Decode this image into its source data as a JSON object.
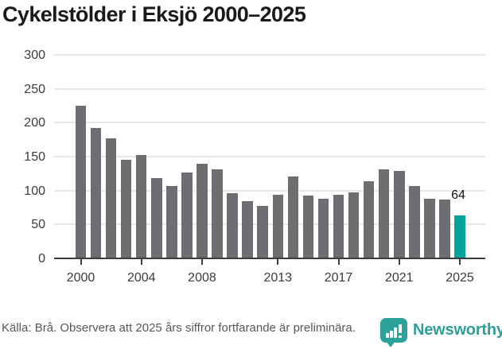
{
  "title": "Cykelstölder i Eksjö 2000–2025",
  "chart_data": {
    "type": "bar",
    "title": "Cykelstölder i Eksjö 2000–2025",
    "xlabel": "",
    "ylabel": "",
    "categories": [
      2000,
      2001,
      2002,
      2003,
      2004,
      2005,
      2006,
      2007,
      2008,
      2009,
      2010,
      2011,
      2012,
      2013,
      2014,
      2015,
      2016,
      2017,
      2018,
      2019,
      2020,
      2021,
      2022,
      2023,
      2024,
      2025
    ],
    "values": [
      226,
      193,
      178,
      147,
      154,
      119,
      108,
      128,
      141,
      133,
      97,
      86,
      79,
      95,
      122,
      94,
      89,
      95,
      98,
      115,
      133,
      130,
      108,
      89,
      88,
      64
    ],
    "highlight_index": 25,
    "highlight_label": "64",
    "bar_color": "#6e6d72",
    "highlight_color": "#00a49b",
    "ylim": [
      0,
      300
    ],
    "yticks": [
      0,
      50,
      100,
      150,
      200,
      250,
      300
    ],
    "xticks": [
      2000,
      2004,
      2008,
      2013,
      2017,
      2021,
      2025
    ],
    "grid": "horizontal",
    "legend": "none"
  },
  "footer": {
    "source_text": "Källa: Brå. Observera att 2025 års siffror fortfarande är preliminära."
  },
  "logo": {
    "text": "Newsworthy",
    "icon": "speech-bubble-bar-chart-icon",
    "color": "#2f9e98"
  },
  "colors": {
    "bar": "#6e6d72",
    "highlight": "#00a49b",
    "gridline": "#e7e7e7",
    "axis": "#3d3d3d",
    "title_text": "#1a1a1a",
    "footer_text": "#53585c"
  }
}
